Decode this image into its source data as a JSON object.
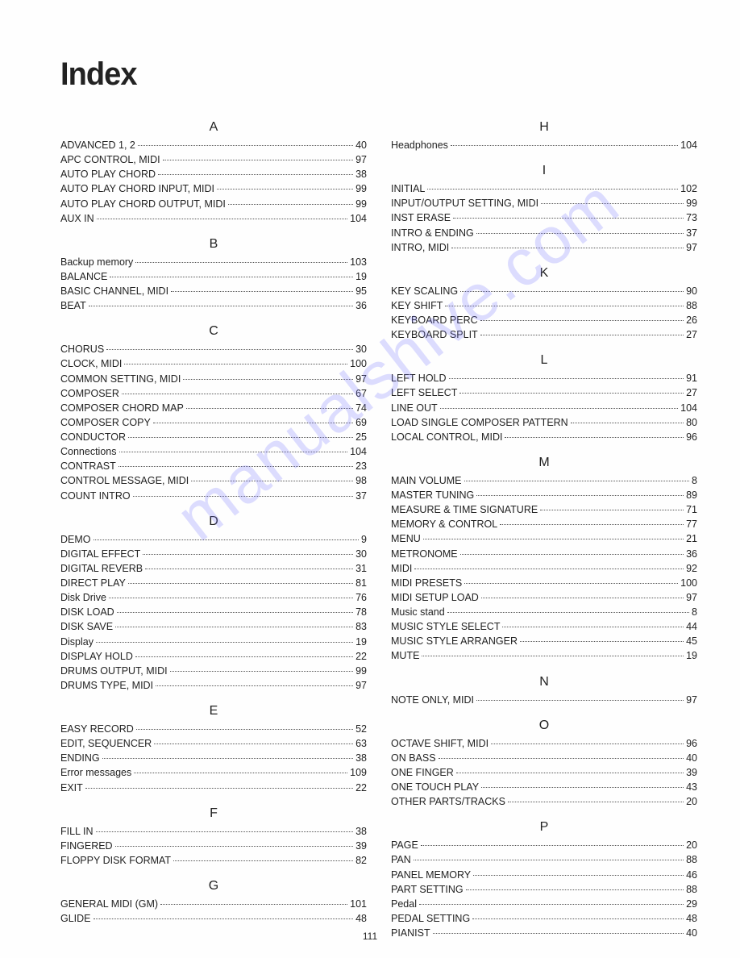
{
  "title": "Index",
  "page_number": "111",
  "watermark": "manualshive.com",
  "left": [
    {
      "head": "A",
      "items": [
        {
          "label": "ADVANCED 1, 2",
          "page": "40"
        },
        {
          "label": "APC CONTROL, MIDI",
          "page": "97"
        },
        {
          "label": "AUTO PLAY CHORD",
          "page": "38"
        },
        {
          "label": "AUTO PLAY CHORD INPUT, MIDI",
          "page": "99"
        },
        {
          "label": "AUTO PLAY CHORD OUTPUT, MIDI",
          "page": "99"
        },
        {
          "label": "AUX IN",
          "page": "104"
        }
      ]
    },
    {
      "head": "B",
      "items": [
        {
          "label": "Backup memory",
          "page": "103"
        },
        {
          "label": "BALANCE",
          "page": "19"
        },
        {
          "label": "BASIC CHANNEL, MIDI",
          "page": "95"
        },
        {
          "label": "BEAT",
          "page": "36"
        }
      ]
    },
    {
      "head": "C",
      "items": [
        {
          "label": "CHORUS",
          "page": "30"
        },
        {
          "label": "CLOCK, MIDI",
          "page": "100"
        },
        {
          "label": "COMMON SETTING, MIDI",
          "page": "97"
        },
        {
          "label": "COMPOSER",
          "page": "67"
        },
        {
          "label": "COMPOSER CHORD MAP",
          "page": "74"
        },
        {
          "label": "COMPOSER COPY",
          "page": "69"
        },
        {
          "label": "CONDUCTOR",
          "page": "25"
        },
        {
          "label": "Connections",
          "page": "104"
        },
        {
          "label": "CONTRAST",
          "page": "23"
        },
        {
          "label": "CONTROL MESSAGE, MIDI",
          "page": "98"
        },
        {
          "label": "COUNT INTRO",
          "page": "37"
        }
      ]
    },
    {
      "head": "D",
      "items": [
        {
          "label": "DEMO",
          "page": "9"
        },
        {
          "label": "DIGITAL EFFECT",
          "page": "30"
        },
        {
          "label": "DIGITAL REVERB",
          "page": "31"
        },
        {
          "label": "DIRECT PLAY",
          "page": "81"
        },
        {
          "label": "Disk Drive",
          "page": "76"
        },
        {
          "label": "DISK LOAD",
          "page": "78"
        },
        {
          "label": "DISK SAVE",
          "page": "83"
        },
        {
          "label": "Display",
          "page": "19"
        },
        {
          "label": "DISPLAY HOLD",
          "page": "22"
        },
        {
          "label": "DRUMS OUTPUT, MIDI",
          "page": "99"
        },
        {
          "label": "DRUMS TYPE, MIDI",
          "page": "97"
        }
      ]
    },
    {
      "head": "E",
      "items": [
        {
          "label": "EASY RECORD",
          "page": "52"
        },
        {
          "label": "EDIT, SEQUENCER",
          "page": "63"
        },
        {
          "label": "ENDING",
          "page": "38"
        },
        {
          "label": "Error messages",
          "page": "109"
        },
        {
          "label": "EXIT",
          "page": "22"
        }
      ]
    },
    {
      "head": "F",
      "items": [
        {
          "label": "FILL IN",
          "page": "38"
        },
        {
          "label": "FINGERED",
          "page": "39"
        },
        {
          "label": "FLOPPY DISK FORMAT",
          "page": "82"
        }
      ]
    },
    {
      "head": "G",
      "items": [
        {
          "label": "GENERAL MIDI (GM)",
          "page": "101"
        },
        {
          "label": "GLIDE",
          "page": "48"
        }
      ]
    }
  ],
  "right": [
    {
      "head": "H",
      "items": [
        {
          "label": "Headphones",
          "page": "104"
        }
      ]
    },
    {
      "head": "I",
      "items": [
        {
          "label": "INITIAL",
          "page": "102"
        },
        {
          "label": "INPUT/OUTPUT SETTING, MIDI",
          "page": "99"
        },
        {
          "label": "INST ERASE",
          "page": "73"
        },
        {
          "label": "INTRO & ENDING",
          "page": "37"
        },
        {
          "label": "INTRO, MIDI",
          "page": "97"
        }
      ]
    },
    {
      "head": "K",
      "items": [
        {
          "label": "KEY SCALING",
          "page": "90"
        },
        {
          "label": "KEY SHIFT",
          "page": "88"
        },
        {
          "label": "KEYBOARD PERC",
          "page": "26"
        },
        {
          "label": "KEYBOARD SPLIT",
          "page": "27"
        }
      ]
    },
    {
      "head": "L",
      "items": [
        {
          "label": "LEFT HOLD",
          "page": "91"
        },
        {
          "label": "LEFT SELECT",
          "page": "27"
        },
        {
          "label": "LINE OUT",
          "page": "104"
        },
        {
          "label": "LOAD SINGLE COMPOSER PATTERN",
          "page": "80"
        },
        {
          "label": "LOCAL CONTROL, MIDI",
          "page": "96"
        }
      ]
    },
    {
      "head": "M",
      "items": [
        {
          "label": "MAIN VOLUME",
          "page": "8"
        },
        {
          "label": "MASTER TUNING",
          "page": "89"
        },
        {
          "label": "MEASURE & TIME SIGNATURE",
          "page": "71"
        },
        {
          "label": "MEMORY & CONTROL",
          "page": "77"
        },
        {
          "label": "MENU",
          "page": "21"
        },
        {
          "label": "METRONOME",
          "page": "36"
        },
        {
          "label": "MIDI",
          "page": "92"
        },
        {
          "label": "MIDI PRESETS",
          "page": "100"
        },
        {
          "label": "MIDI SETUP LOAD",
          "page": "97"
        },
        {
          "label": "Music stand",
          "page": "8"
        },
        {
          "label": "MUSIC STYLE SELECT",
          "page": "44"
        },
        {
          "label": "MUSIC STYLE ARRANGER",
          "page": "45"
        },
        {
          "label": "MUTE",
          "page": "19"
        }
      ]
    },
    {
      "head": "N",
      "items": [
        {
          "label": "NOTE ONLY, MIDI",
          "page": "97"
        }
      ]
    },
    {
      "head": "O",
      "items": [
        {
          "label": "OCTAVE SHIFT, MIDI",
          "page": "96"
        },
        {
          "label": "ON BASS",
          "page": "40"
        },
        {
          "label": "ONE FINGER",
          "page": "39"
        },
        {
          "label": "ONE TOUCH PLAY",
          "page": "43"
        },
        {
          "label": "OTHER PARTS/TRACKS",
          "page": "20"
        }
      ]
    },
    {
      "head": "P",
      "items": [
        {
          "label": "PAGE",
          "page": "20"
        },
        {
          "label": "PAN",
          "page": "88"
        },
        {
          "label": "PANEL MEMORY",
          "page": "46"
        },
        {
          "label": "PART SETTING",
          "page": "88"
        },
        {
          "label": "Pedal",
          "page": "29"
        },
        {
          "label": "PEDAL SETTING",
          "page": "48"
        },
        {
          "label": "PIANIST",
          "page": "40"
        }
      ]
    }
  ]
}
